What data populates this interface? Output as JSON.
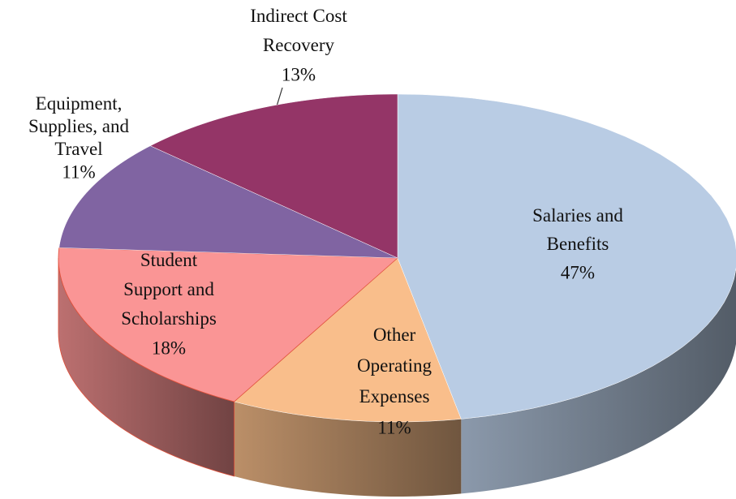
{
  "chart_data": {
    "type": "pie",
    "categories": [
      "Salaries and Benefits",
      "Other Operating Expenses",
      "Student Support and Scholarships",
      "Equipment, Supplies, and Travel",
      "Indirect Cost Recovery"
    ],
    "values": [
      47,
      11,
      18,
      11,
      13
    ],
    "value_labels": [
      "47%",
      "11%",
      "18%",
      "11%",
      "13%"
    ],
    "colors": [
      "#b9cce4",
      "#f9be8b",
      "#fa9595",
      "#8064a2",
      "#943567"
    ]
  }
}
